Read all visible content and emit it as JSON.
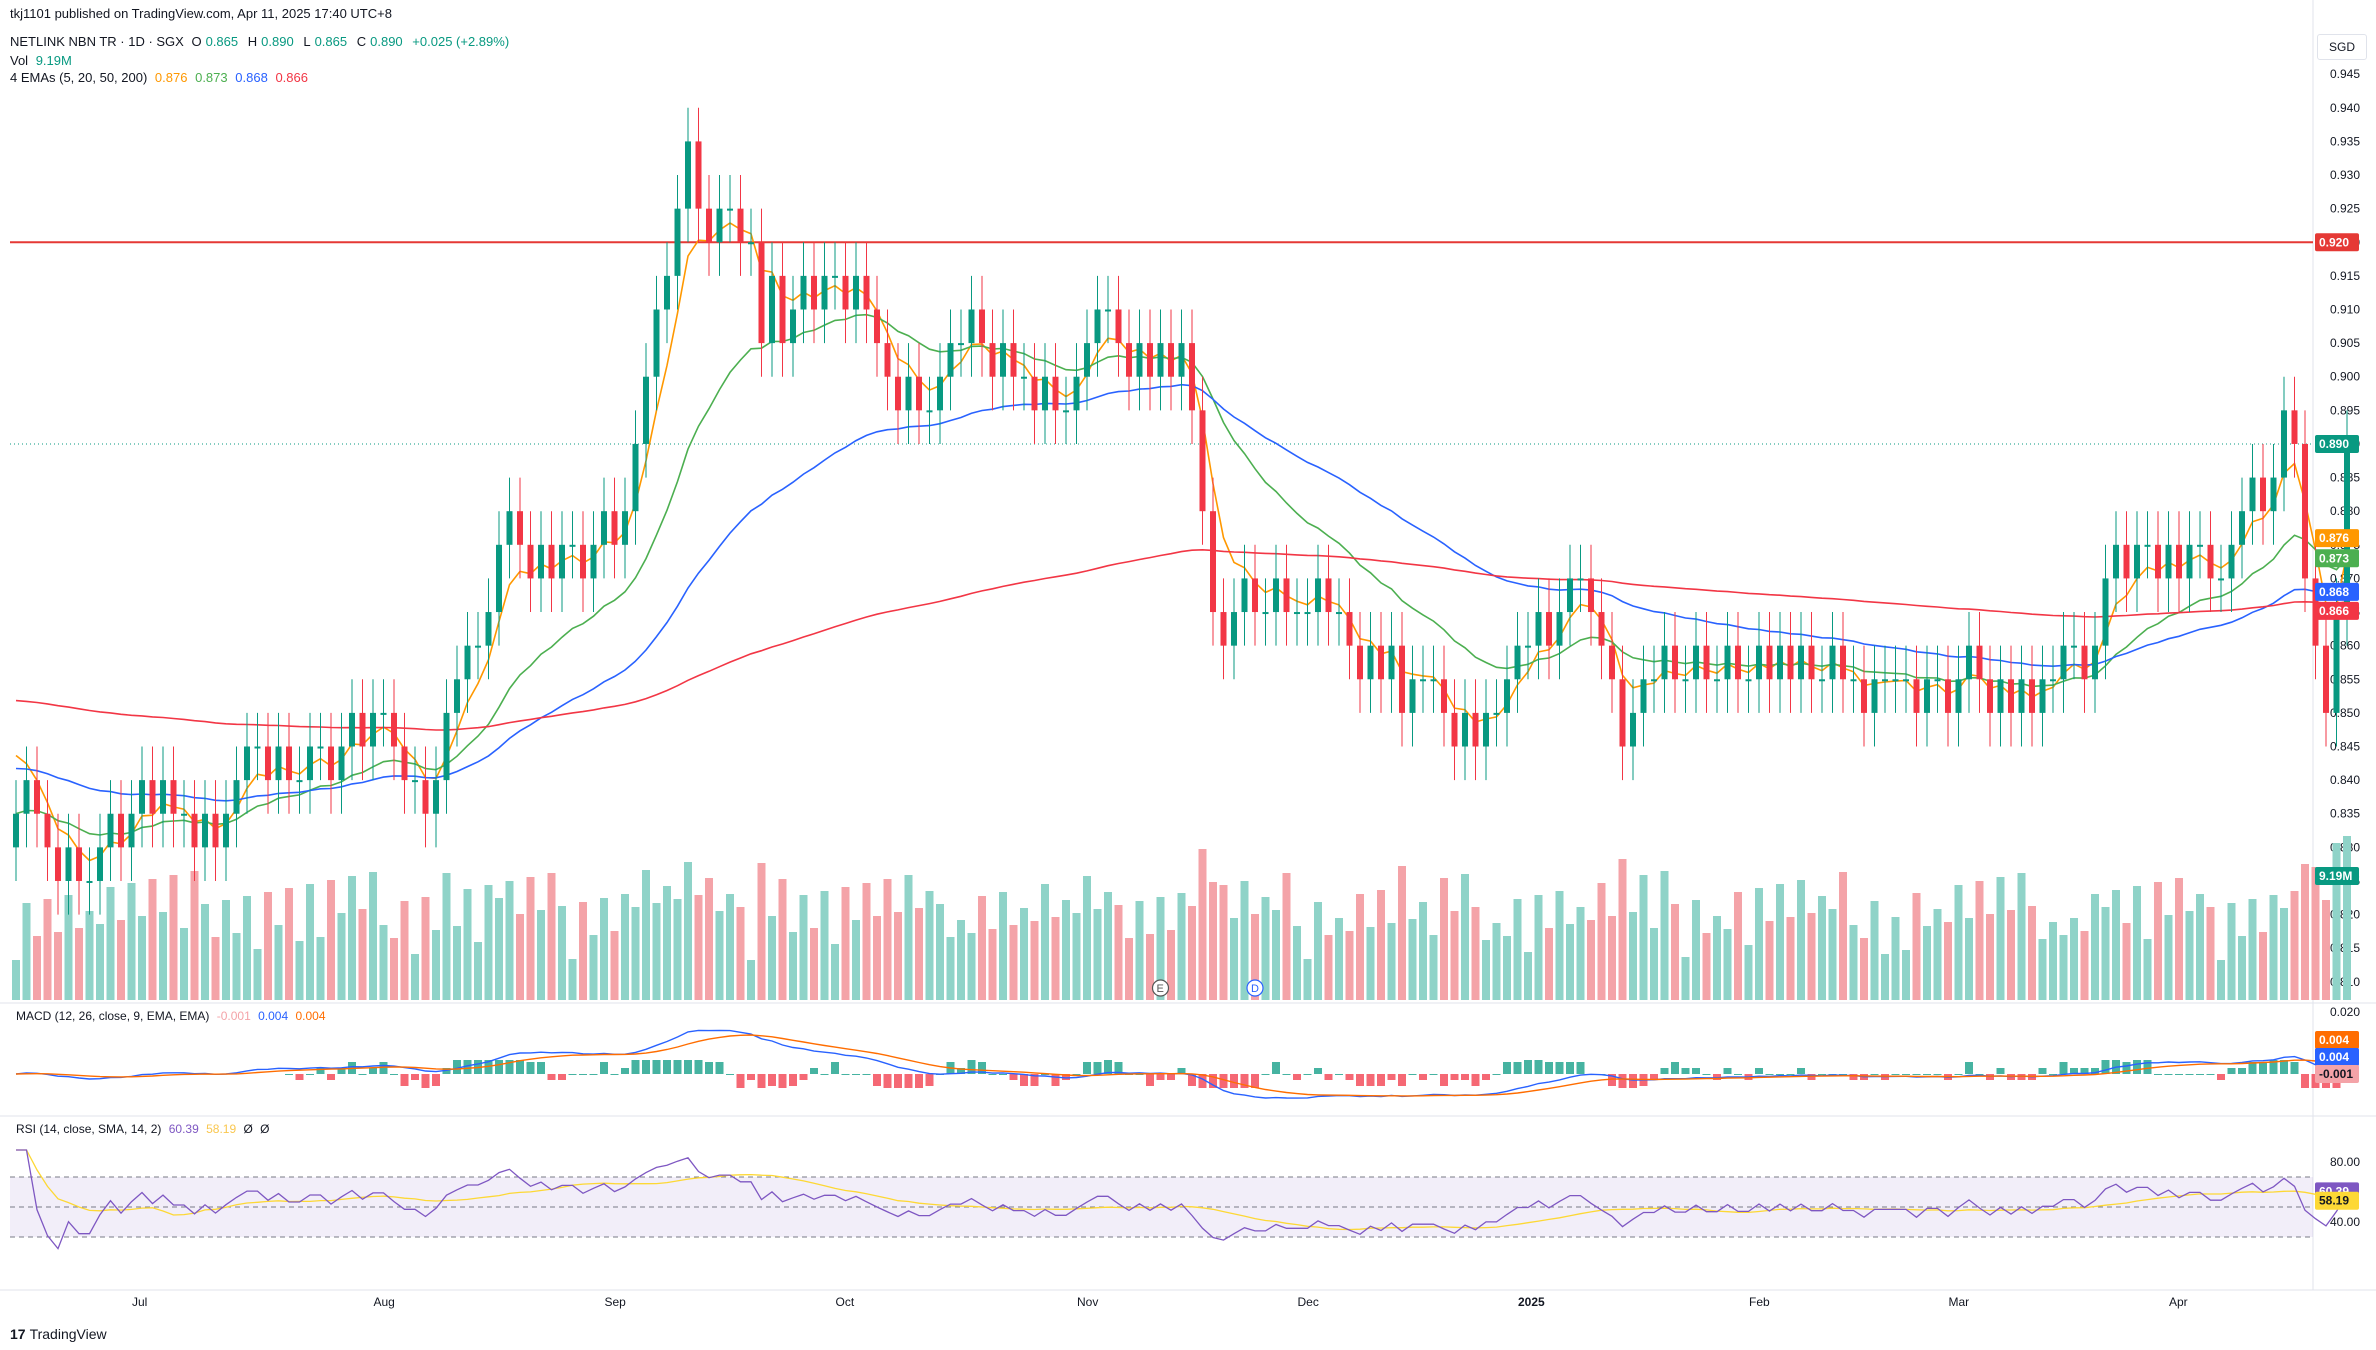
{
  "header": {
    "published": "tkj1101 published on TradingView.com, Apr 11, 2025 17:40 UTC+8",
    "symbol": "NETLINK NBN TR · 1D · SGX",
    "o_label": "O",
    "o_value": "0.865",
    "h_label": "H",
    "h_value": "0.890",
    "l_label": "L",
    "l_value": "0.865",
    "c_label": "C",
    "c_value": "0.890",
    "change": "+0.025 (+2.89%)",
    "vol_label": "Vol",
    "vol_value": "9.19M",
    "ema_label": "4 EMAs (5, 20, 50, 200)",
    "ema5": "0.876",
    "ema20": "0.873",
    "ema50": "0.868",
    "ema200": "0.866",
    "currency": "SGD"
  },
  "indicators": {
    "macd_label": "MACD (12, 26, close, 9, EMA, EMA)",
    "macd_hist": "-0.001",
    "macd_line": "0.004",
    "macd_signal": "0.004",
    "rsi_label": "RSI (14, close, SMA, 14, 2)",
    "rsi_value": "60.39",
    "rsi_ma": "58.19",
    "rsi_extra1": "Ø",
    "rsi_extra2": "Ø"
  },
  "footer": {
    "logo_mark": "17",
    "logo_text": "TradingView"
  },
  "colors": {
    "up": "#089981",
    "down": "#f23645",
    "vol_up": "#8fd3c8",
    "vol_down": "#f4a3a8",
    "ema5": "#ff9800",
    "ema20": "#4caf50",
    "ema50": "#2962ff",
    "ema200": "#f23645",
    "macd": "#2962ff",
    "signal": "#ff6d00",
    "rsi": "#7e57c2",
    "rsi_ma": "#fdd835"
  },
  "chart_data": {
    "type": "candlestick",
    "price_axis": {
      "ylim": [
        0.807,
        0.948
      ],
      "ticks": [
        "0.810",
        "0.815",
        "0.820",
        "0.825",
        "0.830",
        "0.835",
        "0.840",
        "0.845",
        "0.850",
        "0.855",
        "0.860",
        "0.865",
        "0.870",
        "0.875",
        "0.880",
        "0.885",
        "0.890",
        "0.895",
        "0.900",
        "0.905",
        "0.910",
        "0.915",
        "0.920",
        "0.925",
        "0.930",
        "0.935",
        "0.940",
        "0.945"
      ]
    },
    "x_axis_labels": [
      {
        "label": "Jul",
        "index": 12
      },
      {
        "label": "Aug",
        "index": 35
      },
      {
        "label": "Sep",
        "index": 57
      },
      {
        "label": "Oct",
        "index": 79
      },
      {
        "label": "Nov",
        "index": 102
      },
      {
        "label": "Dec",
        "index": 123
      },
      {
        "label": "2025",
        "index": 144
      },
      {
        "label": "Feb",
        "index": 166
      },
      {
        "label": "Mar",
        "index": 185
      },
      {
        "label": "Apr",
        "index": 206
      }
    ],
    "closes": [
      0.835,
      0.84,
      0.835,
      0.83,
      0.825,
      0.83,
      0.825,
      0.825,
      0.83,
      0.835,
      0.83,
      0.835,
      0.84,
      0.835,
      0.84,
      0.835,
      0.835,
      0.83,
      0.835,
      0.83,
      0.835,
      0.84,
      0.845,
      0.845,
      0.84,
      0.845,
      0.84,
      0.84,
      0.845,
      0.845,
      0.84,
      0.845,
      0.85,
      0.845,
      0.85,
      0.85,
      0.845,
      0.84,
      0.84,
      0.835,
      0.84,
      0.85,
      0.855,
      0.86,
      0.86,
      0.865,
      0.875,
      0.88,
      0.875,
      0.87,
      0.875,
      0.87,
      0.875,
      0.875,
      0.87,
      0.875,
      0.88,
      0.875,
      0.88,
      0.89,
      0.9,
      0.91,
      0.915,
      0.925,
      0.935,
      0.925,
      0.92,
      0.925,
      0.925,
      0.92,
      0.92,
      0.905,
      0.915,
      0.905,
      0.91,
      0.915,
      0.91,
      0.915,
      0.915,
      0.91,
      0.915,
      0.91,
      0.905,
      0.9,
      0.895,
      0.9,
      0.895,
      0.895,
      0.9,
      0.905,
      0.905,
      0.91,
      0.905,
      0.9,
      0.905,
      0.9,
      0.9,
      0.895,
      0.9,
      0.895,
      0.895,
      0.9,
      0.905,
      0.91,
      0.91,
      0.905,
      0.9,
      0.905,
      0.9,
      0.905,
      0.9,
      0.905,
      0.895,
      0.88,
      0.865,
      0.86,
      0.865,
      0.87,
      0.865,
      0.865,
      0.87,
      0.865,
      0.865,
      0.865,
      0.87,
      0.865,
      0.865,
      0.86,
      0.855,
      0.86,
      0.855,
      0.86,
      0.85,
      0.855,
      0.855,
      0.855,
      0.85,
      0.845,
      0.85,
      0.845,
      0.85,
      0.85,
      0.855,
      0.86,
      0.86,
      0.865,
      0.86,
      0.865,
      0.87,
      0.87,
      0.865,
      0.86,
      0.855,
      0.845,
      0.85,
      0.855,
      0.855,
      0.86,
      0.855,
      0.855,
      0.86,
      0.855,
      0.855,
      0.86,
      0.855,
      0.855,
      0.86,
      0.855,
      0.86,
      0.855,
      0.86,
      0.855,
      0.855,
      0.86,
      0.855,
      0.855,
      0.85,
      0.855,
      0.855,
      0.855,
      0.855,
      0.85,
      0.855,
      0.855,
      0.85,
      0.855,
      0.86,
      0.855,
      0.85,
      0.855,
      0.85,
      0.855,
      0.85,
      0.855,
      0.855,
      0.86,
      0.86,
      0.855,
      0.86,
      0.87,
      0.875,
      0.87,
      0.875,
      0.875,
      0.87,
      0.875,
      0.87,
      0.875,
      0.875,
      0.87,
      0.87,
      0.875,
      0.88,
      0.885,
      0.88,
      0.885,
      0.895,
      0.89,
      0.87,
      0.86,
      0.85,
      0.865,
      0.89
    ],
    "level_line": {
      "value": 0.92,
      "label": "0.920"
    },
    "last_price_line": {
      "value": 0.89,
      "label": "0.890"
    },
    "right_tags": [
      {
        "label": "0.890",
        "role": "last"
      },
      {
        "label": "0.876",
        "role": "ema5"
      },
      {
        "label": "0.873",
        "role": "ema20"
      },
      {
        "label": "0.868",
        "role": "ema50"
      },
      {
        "label": "0.866",
        "role": "ema200"
      },
      {
        "label": "9.19M",
        "role": "volume"
      }
    ],
    "event_markers": [
      "E",
      "D",
      "⚡"
    ],
    "volume": {
      "last": "9.19M"
    },
    "macd_axis": [
      "0.020"
    ],
    "macd_tags": [
      "0.004",
      "0.004",
      "-0.001"
    ],
    "rsi_axis": [
      "80.00",
      "40.00"
    ],
    "rsi_tags": [
      "60.39",
      "58.19"
    ],
    "rsi_bands": [
      70,
      30
    ]
  }
}
